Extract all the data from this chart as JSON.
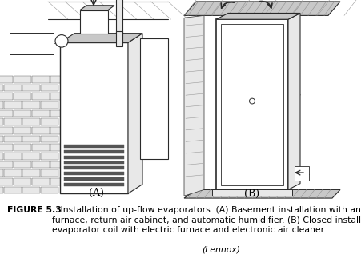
{
  "bg_color": "#ffffff",
  "fig_width": 4.51,
  "fig_height": 3.23,
  "dpi": 100,
  "caption_bold": "FIGURE 5.3",
  "caption_normal": "   Installation of up-flow evaporators. (A) Basement installation with an oil\nfurnace, return air cabinet, and automatic humidifier. (B) Closed installation of an\nevaporator coil with electric furnace and electronic air cleaner. ",
  "caption_italic": "(Lennox)",
  "label_A": "(A)",
  "label_B": "(B)",
  "line_color": "#2a2a2a",
  "gray_light": "#c8c8c8",
  "gray_mid": "#999999",
  "gray_dark": "#555555",
  "gray_fill": "#e8e8e8"
}
